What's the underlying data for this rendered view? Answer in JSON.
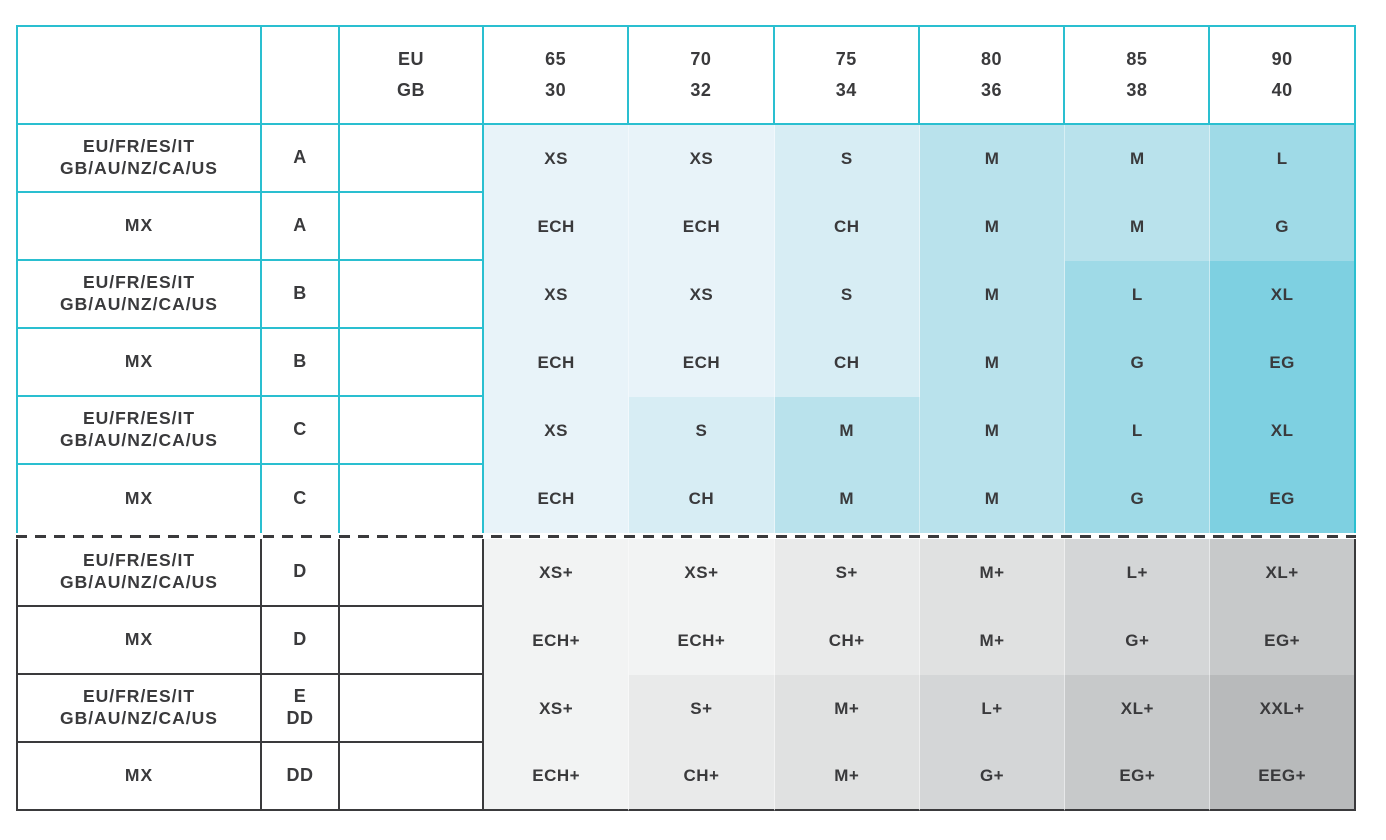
{
  "colors": {
    "background": "#ffffff",
    "border_teal": "#2abfd0",
    "border_dark": "#3a3a3c",
    "text": "#3a3a3c",
    "teal_levels": [
      "#e8f3f9",
      "#d7edf4",
      "#b9e2ec",
      "#9fdae7",
      "#7ed0e1"
    ],
    "gray_levels": [
      "#f2f3f3",
      "#e9eaea",
      "#e0e1e1",
      "#d4d6d7",
      "#c7c9ca",
      "#b8babb"
    ]
  },
  "header": {
    "eu_gb": [
      "EU",
      "GB"
    ],
    "bands": [
      [
        "65",
        "30"
      ],
      [
        "70",
        "32"
      ],
      [
        "75",
        "34"
      ],
      [
        "80",
        "36"
      ],
      [
        "85",
        "38"
      ],
      [
        "90",
        "40"
      ]
    ]
  },
  "table": {
    "rows": [
      {
        "region": [
          "EU/FR/ES/IT",
          "GB/AU/NZ/CA/US"
        ],
        "cup": [
          "A",
          ""
        ],
        "sizes": [
          "XS",
          "XS",
          "S",
          "M",
          "M",
          "L"
        ],
        "shades": [
          0,
          0,
          1,
          2,
          2,
          3
        ],
        "section": "teal"
      },
      {
        "region": [
          "MX",
          ""
        ],
        "cup": [
          "A",
          ""
        ],
        "sizes": [
          "ECH",
          "ECH",
          "CH",
          "M",
          "M",
          "G"
        ],
        "shades": [
          0,
          0,
          1,
          2,
          2,
          3
        ],
        "section": "teal"
      },
      {
        "region": [
          "EU/FR/ES/IT",
          "GB/AU/NZ/CA/US"
        ],
        "cup": [
          "B",
          ""
        ],
        "sizes": [
          "XS",
          "XS",
          "S",
          "M",
          "L",
          "XL"
        ],
        "shades": [
          0,
          0,
          1,
          2,
          3,
          4
        ],
        "section": "teal"
      },
      {
        "region": [
          "MX",
          ""
        ],
        "cup": [
          "B",
          ""
        ],
        "sizes": [
          "ECH",
          "ECH",
          "CH",
          "M",
          "G",
          "EG"
        ],
        "shades": [
          0,
          0,
          1,
          2,
          3,
          4
        ],
        "section": "teal"
      },
      {
        "region": [
          "EU/FR/ES/IT",
          "GB/AU/NZ/CA/US"
        ],
        "cup": [
          "C",
          ""
        ],
        "sizes": [
          "XS",
          "S",
          "M",
          "M",
          "L",
          "XL"
        ],
        "shades": [
          0,
          1,
          2,
          2,
          3,
          4
        ],
        "section": "teal"
      },
      {
        "region": [
          "MX",
          ""
        ],
        "cup": [
          "C",
          ""
        ],
        "sizes": [
          "ECH",
          "CH",
          "M",
          "M",
          "G",
          "EG"
        ],
        "shades": [
          0,
          1,
          2,
          2,
          3,
          4
        ],
        "section": "teal"
      },
      {
        "region": [
          "EU/FR/ES/IT",
          "GB/AU/NZ/CA/US"
        ],
        "cup": [
          "D",
          ""
        ],
        "sizes": [
          "XS+",
          "XS+",
          "S+",
          "M+",
          "L+",
          "XL+"
        ],
        "shades": [
          0,
          0,
          1,
          2,
          3,
          4
        ],
        "section": "gray"
      },
      {
        "region": [
          "MX",
          ""
        ],
        "cup": [
          "D",
          ""
        ],
        "sizes": [
          "ECH+",
          "ECH+",
          "CH+",
          "M+",
          "G+",
          "EG+"
        ],
        "shades": [
          0,
          0,
          1,
          2,
          3,
          4
        ],
        "section": "gray"
      },
      {
        "region": [
          "EU/FR/ES/IT",
          "GB/AU/NZ/CA/US"
        ],
        "cup": [
          "E",
          "DD"
        ],
        "sizes": [
          "XS+",
          "S+",
          "M+",
          "L+",
          "XL+",
          "XXL+"
        ],
        "shades": [
          0,
          1,
          2,
          3,
          4,
          5
        ],
        "section": "gray"
      },
      {
        "region": [
          "MX",
          ""
        ],
        "cup": [
          "DD",
          ""
        ],
        "sizes": [
          "ECH+",
          "CH+",
          "M+",
          "G+",
          "EG+",
          "EEG+"
        ],
        "shades": [
          0,
          1,
          2,
          3,
          4,
          5
        ],
        "section": "gray"
      }
    ]
  }
}
